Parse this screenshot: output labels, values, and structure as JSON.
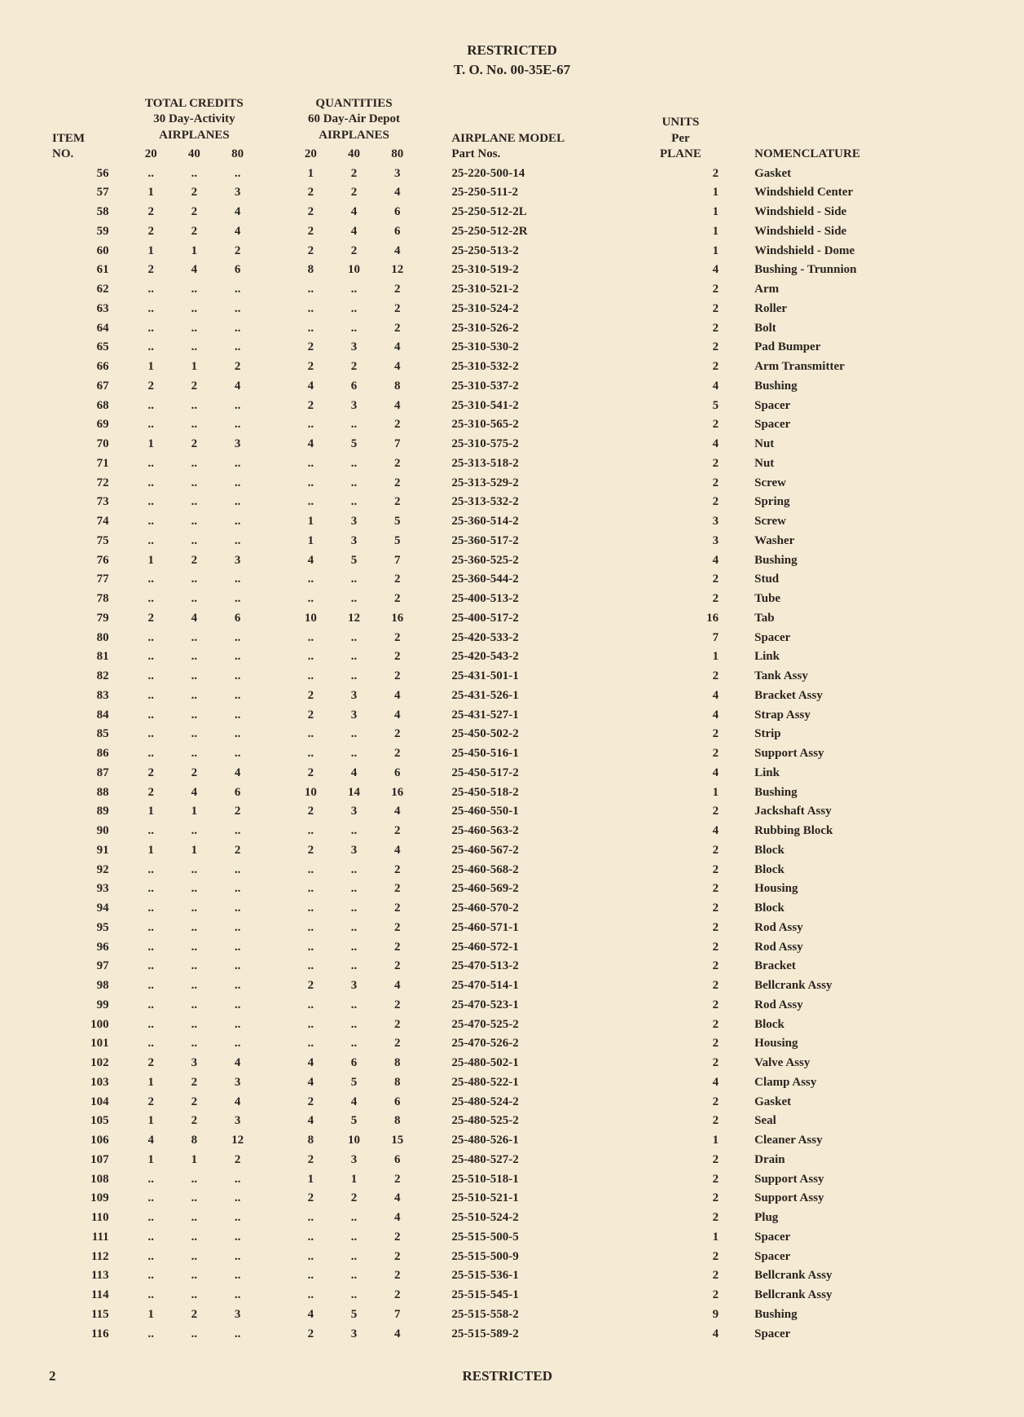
{
  "header": {
    "line1": "RESTRICTED",
    "line2": "T. O. No. 00-35E-67"
  },
  "columns": {
    "item": {
      "h1": "ITEM",
      "h2": "NO."
    },
    "credits": {
      "h1": "TOTAL CREDITS",
      "h2": "30 Day-Activity",
      "h3": "AIRPLANES",
      "s1": "20",
      "s2": "40",
      "s3": "80"
    },
    "qty": {
      "h1": "QUANTITIES",
      "h2": "60 Day-Air Depot",
      "h3": "AIRPLANES",
      "s1": "20",
      "s2": "40",
      "s3": "80"
    },
    "model": {
      "h1": "AIRPLANE MODEL",
      "h2": "Part Nos."
    },
    "units": {
      "h1": "UNITS",
      "h2": "Per",
      "h3": "PLANE"
    },
    "nom": {
      "h1": "NOMENCLATURE"
    }
  },
  "rows": [
    {
      "item": "56",
      "c": [
        "..",
        "..",
        ".."
      ],
      "q": [
        "1",
        "2",
        "3"
      ],
      "part": "25-220-500-14",
      "u": "2",
      "nom": "Gasket"
    },
    {
      "item": "57",
      "c": [
        "1",
        "2",
        "3"
      ],
      "q": [
        "2",
        "2",
        "4"
      ],
      "part": "25-250-511-2",
      "u": "1",
      "nom": "Windshield Center"
    },
    {
      "item": "58",
      "c": [
        "2",
        "2",
        "4"
      ],
      "q": [
        "2",
        "4",
        "6"
      ],
      "part": "25-250-512-2L",
      "u": "1",
      "nom": "Windshield - Side"
    },
    {
      "item": "59",
      "c": [
        "2",
        "2",
        "4"
      ],
      "q": [
        "2",
        "4",
        "6"
      ],
      "part": "25-250-512-2R",
      "u": "1",
      "nom": "Windshield - Side"
    },
    {
      "item": "60",
      "c": [
        "1",
        "1",
        "2"
      ],
      "q": [
        "2",
        "2",
        "4"
      ],
      "part": "25-250-513-2",
      "u": "1",
      "nom": "Windshield - Dome"
    },
    {
      "item": "61",
      "c": [
        "2",
        "4",
        "6"
      ],
      "q": [
        "8",
        "10",
        "12"
      ],
      "part": "25-310-519-2",
      "u": "4",
      "nom": "Bushing - Trunnion"
    },
    {
      "item": "62",
      "c": [
        "..",
        "..",
        ".."
      ],
      "q": [
        "..",
        "..",
        "2"
      ],
      "part": "25-310-521-2",
      "u": "2",
      "nom": "Arm"
    },
    {
      "item": "63",
      "c": [
        "..",
        "..",
        ".."
      ],
      "q": [
        "..",
        "..",
        "2"
      ],
      "part": "25-310-524-2",
      "u": "2",
      "nom": "Roller"
    },
    {
      "item": "64",
      "c": [
        "..",
        "..",
        ".."
      ],
      "q": [
        "..",
        "..",
        "2"
      ],
      "part": "25-310-526-2",
      "u": "2",
      "nom": "Bolt"
    },
    {
      "item": "65",
      "c": [
        "..",
        "..",
        ".."
      ],
      "q": [
        "2",
        "3",
        "4"
      ],
      "part": "25-310-530-2",
      "u": "2",
      "nom": "Pad Bumper"
    },
    {
      "item": "66",
      "c": [
        "1",
        "1",
        "2"
      ],
      "q": [
        "2",
        "2",
        "4"
      ],
      "part": "25-310-532-2",
      "u": "2",
      "nom": "Arm Transmitter"
    },
    {
      "item": "67",
      "c": [
        "2",
        "2",
        "4"
      ],
      "q": [
        "4",
        "6",
        "8"
      ],
      "part": "25-310-537-2",
      "u": "4",
      "nom": "Bushing"
    },
    {
      "item": "68",
      "c": [
        "..",
        "..",
        ".."
      ],
      "q": [
        "2",
        "3",
        "4"
      ],
      "part": "25-310-541-2",
      "u": "5",
      "nom": "Spacer"
    },
    {
      "item": "69",
      "c": [
        "..",
        "..",
        ".."
      ],
      "q": [
        "..",
        "..",
        "2"
      ],
      "part": "25-310-565-2",
      "u": "2",
      "nom": "Spacer"
    },
    {
      "item": "70",
      "c": [
        "1",
        "2",
        "3"
      ],
      "q": [
        "4",
        "5",
        "7"
      ],
      "part": "25-310-575-2",
      "u": "4",
      "nom": "Nut"
    },
    {
      "item": "71",
      "c": [
        "..",
        "..",
        ".."
      ],
      "q": [
        "..",
        "..",
        "2"
      ],
      "part": "25-313-518-2",
      "u": "2",
      "nom": "Nut"
    },
    {
      "item": "72",
      "c": [
        "..",
        "..",
        ".."
      ],
      "q": [
        "..",
        "..",
        "2"
      ],
      "part": "25-313-529-2",
      "u": "2",
      "nom": "Screw"
    },
    {
      "item": "73",
      "c": [
        "..",
        "..",
        ".."
      ],
      "q": [
        "..",
        "..",
        "2"
      ],
      "part": "25-313-532-2",
      "u": "2",
      "nom": "Spring"
    },
    {
      "item": "74",
      "c": [
        "..",
        "..",
        ".."
      ],
      "q": [
        "1",
        "3",
        "5"
      ],
      "part": "25-360-514-2",
      "u": "3",
      "nom": "Screw"
    },
    {
      "item": "75",
      "c": [
        "..",
        "..",
        ".."
      ],
      "q": [
        "1",
        "3",
        "5"
      ],
      "part": "25-360-517-2",
      "u": "3",
      "nom": "Washer"
    },
    {
      "item": "76",
      "c": [
        "1",
        "2",
        "3"
      ],
      "q": [
        "4",
        "5",
        "7"
      ],
      "part": "25-360-525-2",
      "u": "4",
      "nom": "Bushing"
    },
    {
      "item": "77",
      "c": [
        "..",
        "..",
        ".."
      ],
      "q": [
        "..",
        "..",
        "2"
      ],
      "part": "25-360-544-2",
      "u": "2",
      "nom": "Stud"
    },
    {
      "item": "78",
      "c": [
        "..",
        "..",
        ".."
      ],
      "q": [
        "..",
        "..",
        "2"
      ],
      "part": "25-400-513-2",
      "u": "2",
      "nom": "Tube"
    },
    {
      "item": "79",
      "c": [
        "2",
        "4",
        "6"
      ],
      "q": [
        "10",
        "12",
        "16"
      ],
      "part": "25-400-517-2",
      "u": "16",
      "nom": "Tab"
    },
    {
      "item": "80",
      "c": [
        "..",
        "..",
        ".."
      ],
      "q": [
        "..",
        "..",
        "2"
      ],
      "part": "25-420-533-2",
      "u": "7",
      "nom": "Spacer"
    },
    {
      "item": "81",
      "c": [
        "..",
        "..",
        ".."
      ],
      "q": [
        "..",
        "..",
        "2"
      ],
      "part": "25-420-543-2",
      "u": "1",
      "nom": "Link"
    },
    {
      "item": "82",
      "c": [
        "..",
        "..",
        ".."
      ],
      "q": [
        "..",
        "..",
        "2"
      ],
      "part": "25-431-501-1",
      "u": "2",
      "nom": "Tank Assy"
    },
    {
      "item": "83",
      "c": [
        "..",
        "..",
        ".."
      ],
      "q": [
        "2",
        "3",
        "4"
      ],
      "part": "25-431-526-1",
      "u": "4",
      "nom": "Bracket Assy"
    },
    {
      "item": "84",
      "c": [
        "..",
        "..",
        ".."
      ],
      "q": [
        "2",
        "3",
        "4"
      ],
      "part": "25-431-527-1",
      "u": "4",
      "nom": "Strap Assy"
    },
    {
      "item": "85",
      "c": [
        "..",
        "..",
        ".."
      ],
      "q": [
        "..",
        "..",
        "2"
      ],
      "part": "25-450-502-2",
      "u": "2",
      "nom": "Strip"
    },
    {
      "item": "86",
      "c": [
        "..",
        "..",
        ".."
      ],
      "q": [
        "..",
        "..",
        "2"
      ],
      "part": "25-450-516-1",
      "u": "2",
      "nom": "Support Assy"
    },
    {
      "item": "87",
      "c": [
        "2",
        "2",
        "4"
      ],
      "q": [
        "2",
        "4",
        "6"
      ],
      "part": "25-450-517-2",
      "u": "4",
      "nom": "Link"
    },
    {
      "item": "88",
      "c": [
        "2",
        "4",
        "6"
      ],
      "q": [
        "10",
        "14",
        "16"
      ],
      "part": "25-450-518-2",
      "u": "1",
      "nom": "Bushing"
    },
    {
      "item": "89",
      "c": [
        "1",
        "1",
        "2"
      ],
      "q": [
        "2",
        "3",
        "4"
      ],
      "part": "25-460-550-1",
      "u": "2",
      "nom": "Jackshaft Assy"
    },
    {
      "item": "90",
      "c": [
        "..",
        "..",
        ".."
      ],
      "q": [
        "..",
        "..",
        "2"
      ],
      "part": "25-460-563-2",
      "u": "4",
      "nom": "Rubbing Block"
    },
    {
      "item": "91",
      "c": [
        "1",
        "1",
        "2"
      ],
      "q": [
        "2",
        "3",
        "4"
      ],
      "part": "25-460-567-2",
      "u": "2",
      "nom": "Block"
    },
    {
      "item": "92",
      "c": [
        "..",
        "..",
        ".."
      ],
      "q": [
        "..",
        "..",
        "2"
      ],
      "part": "25-460-568-2",
      "u": "2",
      "nom": "Block"
    },
    {
      "item": "93",
      "c": [
        "..",
        "..",
        ".."
      ],
      "q": [
        "..",
        "..",
        "2"
      ],
      "part": "25-460-569-2",
      "u": "2",
      "nom": "Housing"
    },
    {
      "item": "94",
      "c": [
        "..",
        "..",
        ".."
      ],
      "q": [
        "..",
        "..",
        "2"
      ],
      "part": "25-460-570-2",
      "u": "2",
      "nom": "Block"
    },
    {
      "item": "95",
      "c": [
        "..",
        "..",
        ".."
      ],
      "q": [
        "..",
        "..",
        "2"
      ],
      "part": "25-460-571-1",
      "u": "2",
      "nom": "Rod Assy"
    },
    {
      "item": "96",
      "c": [
        "..",
        "..",
        ".."
      ],
      "q": [
        "..",
        "..",
        "2"
      ],
      "part": "25-460-572-1",
      "u": "2",
      "nom": "Rod Assy"
    },
    {
      "item": "97",
      "c": [
        "..",
        "..",
        ".."
      ],
      "q": [
        "..",
        "..",
        "2"
      ],
      "part": "25-470-513-2",
      "u": "2",
      "nom": "Bracket"
    },
    {
      "item": "98",
      "c": [
        "..",
        "..",
        ".."
      ],
      "q": [
        "2",
        "3",
        "4"
      ],
      "part": "25-470-514-1",
      "u": "2",
      "nom": "Bellcrank Assy"
    },
    {
      "item": "99",
      "c": [
        "..",
        "..",
        ".."
      ],
      "q": [
        "..",
        "..",
        "2"
      ],
      "part": "25-470-523-1",
      "u": "2",
      "nom": "Rod Assy"
    },
    {
      "item": "100",
      "c": [
        "..",
        "..",
        ".."
      ],
      "q": [
        "..",
        "..",
        "2"
      ],
      "part": "25-470-525-2",
      "u": "2",
      "nom": "Block"
    },
    {
      "item": "101",
      "c": [
        "..",
        "..",
        ".."
      ],
      "q": [
        "..",
        "..",
        "2"
      ],
      "part": "25-470-526-2",
      "u": "2",
      "nom": "Housing"
    },
    {
      "item": "102",
      "c": [
        "2",
        "3",
        "4"
      ],
      "q": [
        "4",
        "6",
        "8"
      ],
      "part": "25-480-502-1",
      "u": "2",
      "nom": "Valve Assy"
    },
    {
      "item": "103",
      "c": [
        "1",
        "2",
        "3"
      ],
      "q": [
        "4",
        "5",
        "8"
      ],
      "part": "25-480-522-1",
      "u": "4",
      "nom": "Clamp Assy"
    },
    {
      "item": "104",
      "c": [
        "2",
        "2",
        "4"
      ],
      "q": [
        "2",
        "4",
        "6"
      ],
      "part": "25-480-524-2",
      "u": "2",
      "nom": "Gasket"
    },
    {
      "item": "105",
      "c": [
        "1",
        "2",
        "3"
      ],
      "q": [
        "4",
        "5",
        "8"
      ],
      "part": "25-480-525-2",
      "u": "2",
      "nom": "Seal"
    },
    {
      "item": "106",
      "c": [
        "4",
        "8",
        "12"
      ],
      "q": [
        "8",
        "10",
        "15"
      ],
      "part": "25-480-526-1",
      "u": "1",
      "nom": "Cleaner Assy"
    },
    {
      "item": "107",
      "c": [
        "1",
        "1",
        "2"
      ],
      "q": [
        "2",
        "3",
        "6"
      ],
      "part": "25-480-527-2",
      "u": "2",
      "nom": "Drain"
    },
    {
      "item": "108",
      "c": [
        "..",
        "..",
        ".."
      ],
      "q": [
        "1",
        "1",
        "2"
      ],
      "part": "25-510-518-1",
      "u": "2",
      "nom": "Support Assy"
    },
    {
      "item": "109",
      "c": [
        "..",
        "..",
        ".."
      ],
      "q": [
        "2",
        "2",
        "4"
      ],
      "part": "25-510-521-1",
      "u": "2",
      "nom": "Support Assy"
    },
    {
      "item": "110",
      "c": [
        "..",
        "..",
        ".."
      ],
      "q": [
        "..",
        "..",
        "4"
      ],
      "part": "25-510-524-2",
      "u": "2",
      "nom": "Plug"
    },
    {
      "item": "111",
      "c": [
        "..",
        "..",
        ".."
      ],
      "q": [
        "..",
        "..",
        "2"
      ],
      "part": "25-515-500-5",
      "u": "1",
      "nom": "Spacer"
    },
    {
      "item": "112",
      "c": [
        "..",
        "..",
        ".."
      ],
      "q": [
        "..",
        "..",
        "2"
      ],
      "part": "25-515-500-9",
      "u": "2",
      "nom": "Spacer"
    },
    {
      "item": "113",
      "c": [
        "..",
        "..",
        ".."
      ],
      "q": [
        "..",
        "..",
        "2"
      ],
      "part": "25-515-536-1",
      "u": "2",
      "nom": "Bellcrank Assy"
    },
    {
      "item": "114",
      "c": [
        "..",
        "..",
        ".."
      ],
      "q": [
        "..",
        "..",
        "2"
      ],
      "part": "25-515-545-1",
      "u": "2",
      "nom": "Bellcrank Assy"
    },
    {
      "item": "115",
      "c": [
        "1",
        "2",
        "3"
      ],
      "q": [
        "4",
        "5",
        "7"
      ],
      "part": "25-515-558-2",
      "u": "9",
      "nom": "Bushing"
    },
    {
      "item": "116",
      "c": [
        "..",
        "..",
        ".."
      ],
      "q": [
        "2",
        "3",
        "4"
      ],
      "part": "25-515-589-2",
      "u": "4",
      "nom": "Spacer"
    }
  ],
  "footer": {
    "page": "2",
    "label": "RESTRICTED"
  }
}
